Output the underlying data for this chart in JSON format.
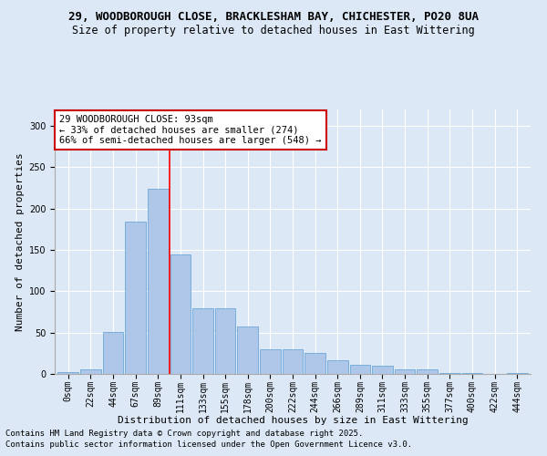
{
  "title_line1": "29, WOODBOROUGH CLOSE, BRACKLESHAM BAY, CHICHESTER, PO20 8UA",
  "title_line2": "Size of property relative to detached houses in East Wittering",
  "xlabel": "Distribution of detached houses by size in East Wittering",
  "ylabel": "Number of detached properties",
  "bar_color": "#aec6e8",
  "bar_edge_color": "#5a9fd4",
  "bin_labels": [
    "0sqm",
    "22sqm",
    "44sqm",
    "67sqm",
    "89sqm",
    "111sqm",
    "133sqm",
    "155sqm",
    "178sqm",
    "200sqm",
    "222sqm",
    "244sqm",
    "266sqm",
    "289sqm",
    "311sqm",
    "333sqm",
    "355sqm",
    "377sqm",
    "400sqm",
    "422sqm",
    "444sqm"
  ],
  "bar_values": [
    2,
    6,
    51,
    184,
    224,
    145,
    79,
    79,
    57,
    30,
    30,
    25,
    17,
    11,
    10,
    6,
    5,
    1,
    1,
    0,
    1
  ],
  "ylim": [
    0,
    320
  ],
  "yticks": [
    0,
    50,
    100,
    150,
    200,
    250,
    300
  ],
  "red_line_x": 4.5,
  "annotation_text": "29 WOODBOROUGH CLOSE: 93sqm\n← 33% of detached houses are smaller (274)\n66% of semi-detached houses are larger (548) →",
  "annotation_box_color": "#ffffff",
  "annotation_box_edge": "#cc0000",
  "footer_line1": "Contains HM Land Registry data © Crown copyright and database right 2025.",
  "footer_line2": "Contains public sector information licensed under the Open Government Licence v3.0.",
  "background_color": "#dce8f5",
  "plot_bg_color": "#dce8f5",
  "title_fontsize": 9,
  "title2_fontsize": 8.5,
  "axis_label_fontsize": 8,
  "tick_fontsize": 7,
  "footer_fontsize": 6.5,
  "annotation_fontsize": 7.5
}
